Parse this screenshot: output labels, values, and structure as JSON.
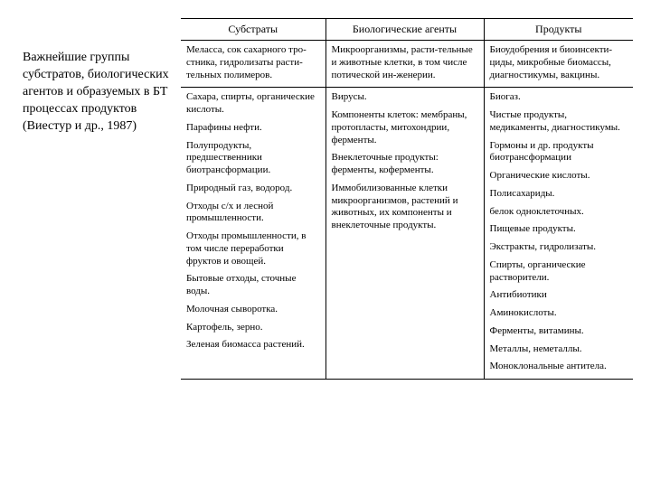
{
  "caption": "Важнейшие группы субстратов, биологических агентов и образуемых в БТ процессах продуктов (Виестур и др., 1987)",
  "headers": {
    "c1": "Субстраты",
    "c2": "Биологические агенты",
    "c3": "Продукты"
  },
  "row1": {
    "c1": "Меласса, сок сахарного тро-стника, гидролизаты расти-тельных полимеров.",
    "c2": "Микроорганизмы, расти-тельные и животные клетки, в том числе потической ин-женерии.",
    "c3": "Биоудобрения и биоинсекти-циды, микробные биомассы, диагностикумы, вакцины."
  },
  "row2": {
    "c1": {
      "i0": "Сахара, спирты, органические кислоты.",
      "i1": "Парафины нефти.",
      "i2": "Полупродукты, предшественники биотрансформации.",
      "i3": "Природный газ, водород.",
      "i4": "Отходы с/х и лесной промышленности.",
      "i5": "Отходы промышленности, в том числе переработки фруктов и овощей.",
      "i6": "Бытовые отходы, сточные воды.",
      "i7": "Молочная сыворотка.",
      "i8": "Картофель, зерно.",
      "i9": "Зеленая биомасса растений."
    },
    "c2": {
      "i0": "Вирусы.",
      "i1": "Компоненты клеток: мембраны, протопласты, митохондрии, ферменты.",
      "i2": "Внеклеточные продукты: ферменты, коферменты.",
      "i3": "Иммобилизованные клетки микроорганизмов, растений и животных, их компоненты и внеклеточные продукты."
    },
    "c3": {
      "i0": "Биогаз.",
      "i1": "Чистые продукты, медикаменты, диагностикумы.",
      "i2": "Гормоны и др. продукты биотрансформации",
      "i3": "Органические кислоты.",
      "i4": "Полисахариды.",
      "i5": "белок одноклеточных.",
      "i6": "Пищевые продукты.",
      "i7": "Экстракты, гидролизаты.",
      "i8": "Спирты, органические растворители.",
      "i9": "Антибиотики",
      "i10": "Аминокислоты.",
      "i11": "Ферменты, витамины.",
      "i12": "Металлы, неметаллы.",
      "i13": "Моноклональные антитела."
    }
  }
}
